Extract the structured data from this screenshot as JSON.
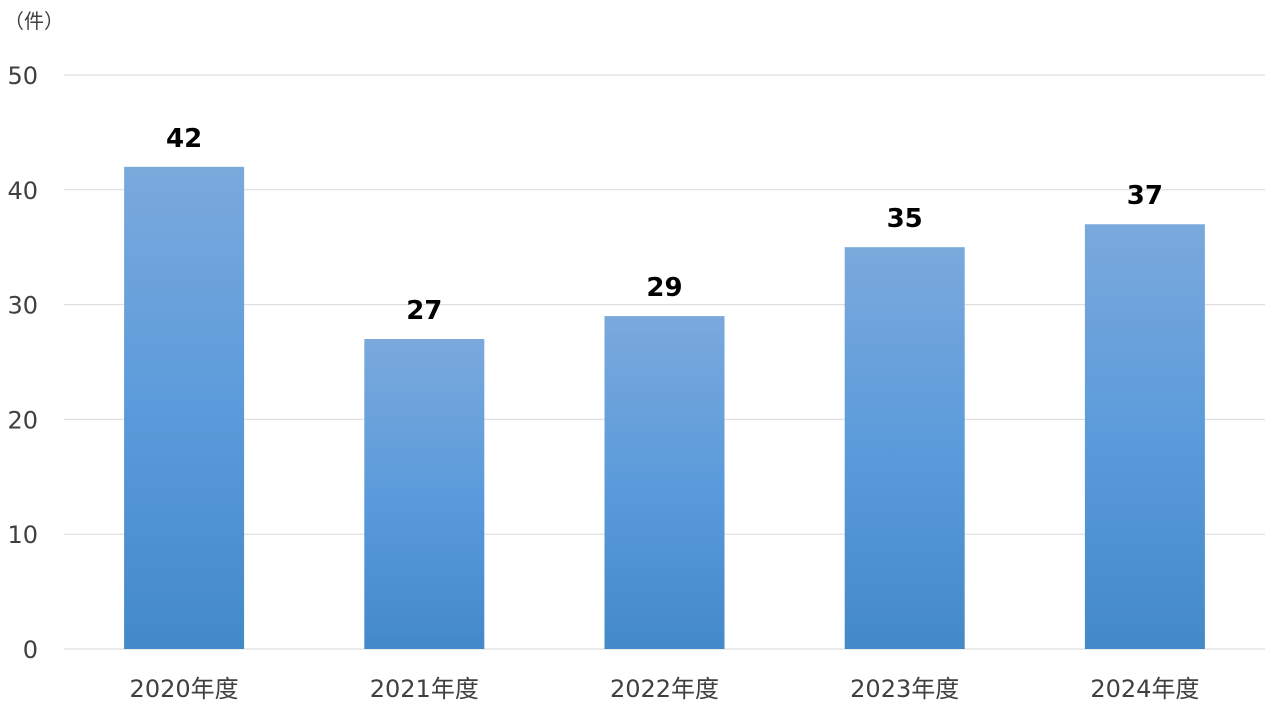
{
  "chart_data": {
    "type": "bar",
    "title": "",
    "xlabel": "",
    "ylabel": "",
    "unit_label": "（件）",
    "categories": [
      "2020年度",
      "2021年度",
      "2022年度",
      "2023年度",
      "2024年度"
    ],
    "values": [
      42,
      27,
      29,
      35,
      37
    ],
    "ylim": [
      0,
      50
    ],
    "yticks": [
      0,
      10,
      20,
      30,
      40,
      50
    ],
    "grid": true,
    "legend": "none",
    "bar_color_top": "#7aa9dc",
    "bar_color_mid": "#5b9bdb",
    "bar_color_bottom": "#4389c8"
  }
}
